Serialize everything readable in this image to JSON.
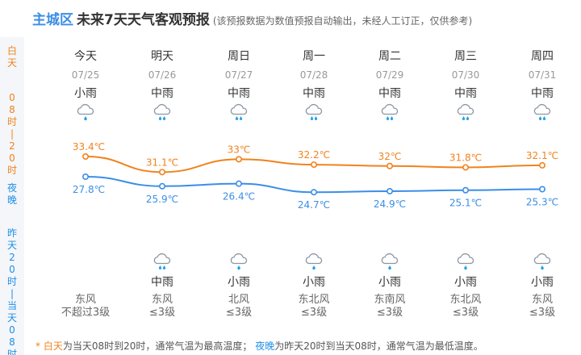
{
  "header": {
    "city": "主城区",
    "title": "未来7天天气客观预报",
    "note": "(该预报数据为数值预报自动输出，未经人工订正，仅供参考)"
  },
  "side": {
    "day": "白天",
    "day_range": "08时|20时",
    "night": "夜晚",
    "night_range": "昨天20时|当天08时"
  },
  "colors": {
    "day_line": "#f0831e",
    "night_line": "#3a8ee6",
    "accent": "#3a8ee6"
  },
  "days": [
    {
      "name": "今天",
      "date": "07/25",
      "day_weather": "小雨",
      "day_icon": "light-rain-icon",
      "day_temp": "33.4℃",
      "night_temp": "27.8℃",
      "night_weather": "",
      "night_icon": "",
      "wind_dir": "东风",
      "wind_level": "不超过3级"
    },
    {
      "name": "明天",
      "date": "07/26",
      "day_weather": "中雨",
      "day_icon": "moderate-rain-icon",
      "day_temp": "31.1℃",
      "night_temp": "25.9℃",
      "night_weather": "中雨",
      "night_icon": "moderate-rain-icon",
      "wind_dir": "东风",
      "wind_level": "≤3级"
    },
    {
      "name": "周日",
      "date": "07/27",
      "day_weather": "中雨",
      "day_icon": "moderate-rain-icon",
      "day_temp": "33℃",
      "night_temp": "26.4℃",
      "night_weather": "小雨",
      "night_icon": "light-rain-icon",
      "wind_dir": "北风",
      "wind_level": "≤3级"
    },
    {
      "name": "周一",
      "date": "07/28",
      "day_weather": "中雨",
      "day_icon": "moderate-rain-icon",
      "day_temp": "32.2℃",
      "night_temp": "24.7℃",
      "night_weather": "小雨",
      "night_icon": "light-rain-icon",
      "wind_dir": "东北风",
      "wind_level": "≤3级"
    },
    {
      "name": "周二",
      "date": "07/29",
      "day_weather": "中雨",
      "day_icon": "moderate-rain-icon",
      "day_temp": "32℃",
      "night_temp": "24.9℃",
      "night_weather": "小雨",
      "night_icon": "light-rain-icon",
      "wind_dir": "东南风",
      "wind_level": "≤3级"
    },
    {
      "name": "周三",
      "date": "07/30",
      "day_weather": "中雨",
      "day_icon": "moderate-rain-icon",
      "day_temp": "31.8℃",
      "night_temp": "25.1℃",
      "night_weather": "小雨",
      "night_icon": "light-rain-icon",
      "wind_dir": "东北风",
      "wind_level": "≤3级"
    },
    {
      "name": "周四",
      "date": "07/31",
      "day_weather": "中雨",
      "day_icon": "moderate-rain-icon",
      "day_temp": "32.1℃",
      "night_temp": "25.3℃",
      "night_weather": "小雨",
      "night_icon": "light-rain-icon",
      "wind_dir": "东风",
      "wind_level": "≤3级"
    }
  ],
  "chart_data": {
    "type": "line",
    "categories": [
      "07/25",
      "07/26",
      "07/27",
      "07/28",
      "07/29",
      "07/30",
      "07/31"
    ],
    "series": [
      {
        "values": [
          33.4,
          31.1,
          33.0,
          32.2,
          32.0,
          31.8,
          32.1
        ],
        "color": "#f0831e"
      },
      {
        "values": [
          27.8,
          25.9,
          26.4,
          24.7,
          24.9,
          25.1,
          25.3
        ],
        "color": "#3a8ee6"
      }
    ],
    "grid": false,
    "legend": "none"
  },
  "footer": {
    "star": "* ",
    "day_word": "白天",
    "day_text": "为当天08时到20时，通常气温为最高温度；",
    "night_word": "夜晚",
    "night_text": "为昨天20时到当天08时，通常气温为最低温度。"
  }
}
